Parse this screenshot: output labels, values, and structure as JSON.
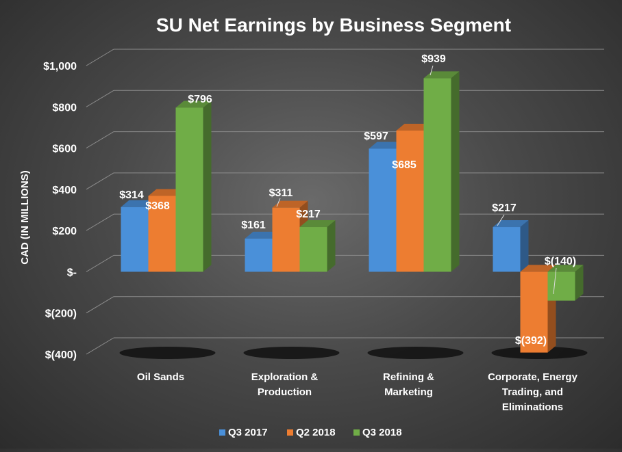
{
  "chart_data": {
    "type": "bar",
    "title": "SU Net Earnings by Business Segment",
    "ylabel": "CAD (IN MILLIONS)",
    "xlabel": "",
    "ylim": [
      -400,
      1000
    ],
    "yticks": [
      {
        "value": 1000,
        "label": "$1,000"
      },
      {
        "value": 800,
        "label": "$800"
      },
      {
        "value": 600,
        "label": "$600"
      },
      {
        "value": 400,
        "label": "$400"
      },
      {
        "value": 200,
        "label": "$200"
      },
      {
        "value": 0,
        "label": "$-"
      },
      {
        "value": -200,
        "label": "$(200)"
      },
      {
        "value": -400,
        "label": "$(400)"
      }
    ],
    "categories": [
      [
        "Oil Sands"
      ],
      [
        "Exploration &",
        "Production"
      ],
      [
        "Refining &",
        "Marketing"
      ],
      [
        "Corporate, Energy",
        "Trading, and",
        "Eliminations"
      ]
    ],
    "series": [
      {
        "name": "Q3 2017",
        "color": "#4a90d9",
        "values": [
          314,
          161,
          597,
          217
        ],
        "labels": [
          "$314",
          "$161",
          "$597",
          "$217"
        ]
      },
      {
        "name": "Q2 2018",
        "color": "#ed7d31",
        "values": [
          368,
          311,
          685,
          -392
        ],
        "labels": [
          "$368",
          "$311",
          "$685",
          "$(392)"
        ]
      },
      {
        "name": "Q3 2018",
        "color": "#70ad47",
        "values": [
          796,
          217,
          939,
          -140
        ],
        "labels": [
          "$796",
          "$217",
          "$939",
          "$(140)"
        ]
      }
    ],
    "grid": true,
    "legend": "bottom",
    "style": "3d-clustered-column"
  }
}
